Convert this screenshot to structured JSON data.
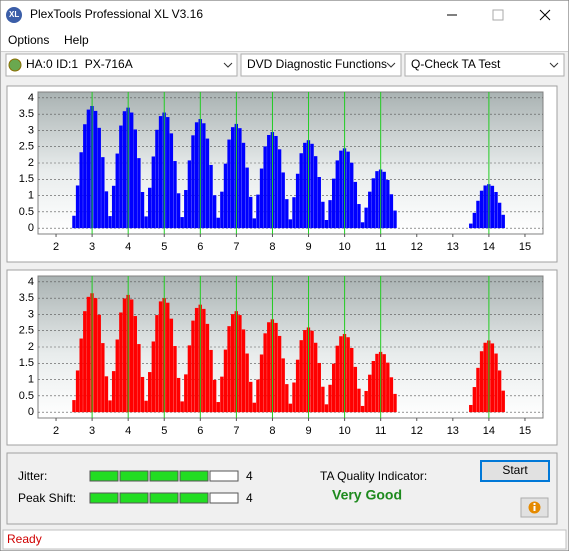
{
  "window": {
    "title": "PlexTools Professional XL V3.16"
  },
  "menu": [
    "Options",
    "Help"
  ],
  "toolbar": {
    "drive": "HA:0 ID:1  PX-716A",
    "function": "DVD Diagnostic Functions",
    "test": "Q-Check TA Test"
  },
  "chart_data": [
    {
      "type": "bar",
      "color": "#0000ff",
      "grid": true,
      "xlim": [
        1.5,
        15.5
      ],
      "ylim": [
        -0.18,
        4.18
      ],
      "xticks": [
        2,
        3,
        4,
        5,
        6,
        7,
        8,
        9,
        10,
        11,
        12,
        13,
        14,
        15
      ],
      "yticks": [
        0,
        0.5,
        1,
        1.5,
        2,
        2.5,
        3,
        3.5,
        4
      ],
      "reference_lines": [
        3,
        4,
        5,
        6,
        7,
        8,
        9,
        10,
        11,
        14
      ],
      "x": [
        2.5,
        2.6,
        2.7,
        2.8,
        2.9,
        3,
        3.1,
        3.2,
        3.3,
        3.4,
        3.5,
        3.6,
        3.7,
        3.8,
        3.9,
        4,
        4.1,
        4.2,
        4.3,
        4.4,
        4.5,
        4.6,
        4.7,
        4.8,
        4.9,
        5,
        5.1,
        5.2,
        5.3,
        5.4,
        5.5,
        5.6,
        5.7,
        5.8,
        5.9,
        6,
        6.1,
        6.2,
        6.3,
        6.4,
        6.5,
        6.6,
        6.7,
        6.8,
        6.9,
        7,
        7.1,
        7.2,
        7.3,
        7.4,
        7.5,
        7.6,
        7.7,
        7.8,
        7.9,
        8,
        8.1,
        8.2,
        8.3,
        8.4,
        8.5,
        8.6,
        8.7,
        8.8,
        8.9,
        9,
        9.1,
        9.2,
        9.3,
        9.4,
        9.5,
        9.6,
        9.7,
        9.8,
        9.9,
        10,
        10.1,
        10.2,
        10.3,
        10.4,
        10.5,
        10.6,
        10.7,
        10.8,
        10.9,
        11,
        11.1,
        11.2,
        11.3,
        11.4,
        13.5,
        13.6,
        13.7,
        13.8,
        13.9,
        14,
        14.1,
        14.2,
        14.3,
        14.4
      ],
      "values": [
        0.38,
        1.31,
        2.33,
        3.19,
        3.64,
        3.75,
        3.6,
        3.08,
        2.18,
        1.13,
        0.37,
        1.3,
        2.29,
        3.15,
        3.59,
        3.7,
        3.55,
        3.03,
        2.15,
        1.11,
        0.36,
        1.24,
        2.2,
        3.02,
        3.44,
        3.55,
        3.41,
        2.91,
        2.06,
        1.07,
        0.34,
        1.17,
        2.08,
        2.85,
        3.25,
        3.35,
        3.22,
        2.75,
        1.94,
        1.01,
        0.32,
        1.12,
        1.98,
        2.72,
        3.1,
        3.2,
        3.07,
        2.62,
        1.86,
        0.96,
        0.3,
        1.03,
        1.83,
        2.51,
        2.86,
        2.95,
        2.83,
        2.42,
        1.71,
        0.89,
        0.27,
        0.95,
        1.67,
        2.3,
        2.62,
        2.7,
        2.59,
        2.21,
        1.57,
        0.81,
        0.25,
        0.86,
        1.52,
        2.08,
        2.38,
        2.45,
        2.35,
        2.01,
        1.42,
        0.74,
        0.18,
        0.63,
        1.12,
        1.53,
        1.75,
        1.8,
        1.73,
        1.48,
        1.04,
        0.54,
        0.14,
        0.47,
        0.84,
        1.15,
        1.31,
        1.35,
        1.3,
        1.11,
        0.78,
        0.41
      ]
    },
    {
      "type": "bar",
      "color": "#ff0000",
      "grid": true,
      "xlim": [
        1.5,
        15.5
      ],
      "ylim": [
        -0.18,
        4.18
      ],
      "xticks": [
        2,
        3,
        4,
        5,
        6,
        7,
        8,
        9,
        10,
        11,
        12,
        13,
        14,
        15
      ],
      "yticks": [
        0,
        0.5,
        1,
        1.5,
        2,
        2.5,
        3,
        3.5,
        4
      ],
      "reference_lines": [
        3,
        4,
        5,
        6,
        7,
        8,
        9,
        10,
        11,
        14
      ],
      "x": [
        2.5,
        2.6,
        2.7,
        2.8,
        2.9,
        3,
        3.1,
        3.2,
        3.3,
        3.4,
        3.5,
        3.6,
        3.7,
        3.8,
        3.9,
        4,
        4.1,
        4.2,
        4.3,
        4.4,
        4.5,
        4.6,
        4.7,
        4.8,
        4.9,
        5,
        5.1,
        5.2,
        5.3,
        5.4,
        5.5,
        5.6,
        5.7,
        5.8,
        5.9,
        6,
        6.1,
        6.2,
        6.3,
        6.4,
        6.5,
        6.6,
        6.7,
        6.8,
        6.9,
        7,
        7.1,
        7.2,
        7.3,
        7.4,
        7.5,
        7.6,
        7.7,
        7.8,
        7.9,
        8,
        8.1,
        8.2,
        8.3,
        8.4,
        8.5,
        8.6,
        8.7,
        8.8,
        8.9,
        9,
        9.1,
        9.2,
        9.3,
        9.4,
        9.5,
        9.6,
        9.7,
        9.8,
        9.9,
        10,
        10.1,
        10.2,
        10.3,
        10.4,
        10.5,
        10.6,
        10.7,
        10.8,
        10.9,
        11,
        11.1,
        11.2,
        11.3,
        11.4,
        13.5,
        13.6,
        13.7,
        13.8,
        13.9,
        14,
        14.1,
        14.2,
        14.3,
        14.4
      ],
      "values": [
        0.37,
        1.28,
        2.26,
        3.1,
        3.54,
        3.65,
        3.5,
        2.99,
        2.12,
        1.1,
        0.36,
        1.26,
        2.23,
        3.06,
        3.49,
        3.6,
        3.46,
        2.95,
        2.09,
        1.08,
        0.35,
        1.23,
        2.17,
        2.98,
        3.4,
        3.5,
        3.36,
        2.87,
        2.03,
        1.05,
        0.33,
        1.16,
        2.05,
        2.81,
        3.2,
        3.3,
        3.17,
        2.71,
        1.91,
        0.99,
        0.31,
        1.09,
        1.92,
        2.64,
        3.01,
        3.1,
        2.98,
        2.54,
        1.8,
        0.93,
        0.29,
        1,
        1.77,
        2.42,
        2.76,
        2.85,
        2.74,
        2.34,
        1.65,
        0.86,
        0.26,
        0.91,
        1.61,
        2.21,
        2.52,
        2.6,
        2.5,
        2.13,
        1.51,
        0.78,
        0.24,
        0.84,
        1.49,
        2.04,
        2.33,
        2.4,
        2.3,
        1.97,
        1.39,
        0.72,
        0.19,
        0.65,
        1.15,
        1.57,
        1.79,
        1.85,
        1.78,
        1.52,
        1.07,
        0.56,
        0.22,
        0.77,
        1.36,
        1.87,
        2.13,
        2.2,
        2.11,
        1.8,
        1.28,
        0.66
      ]
    }
  ],
  "results": {
    "jitter": {
      "label": "Jitter:",
      "value": 4,
      "segments": 5
    },
    "peak_shift": {
      "label": "Peak Shift:",
      "value": 4,
      "segments": 5
    },
    "ta_quality": {
      "label": "TA Quality Indicator:",
      "value": "Very Good"
    },
    "start_button": "Start"
  },
  "status": "Ready"
}
